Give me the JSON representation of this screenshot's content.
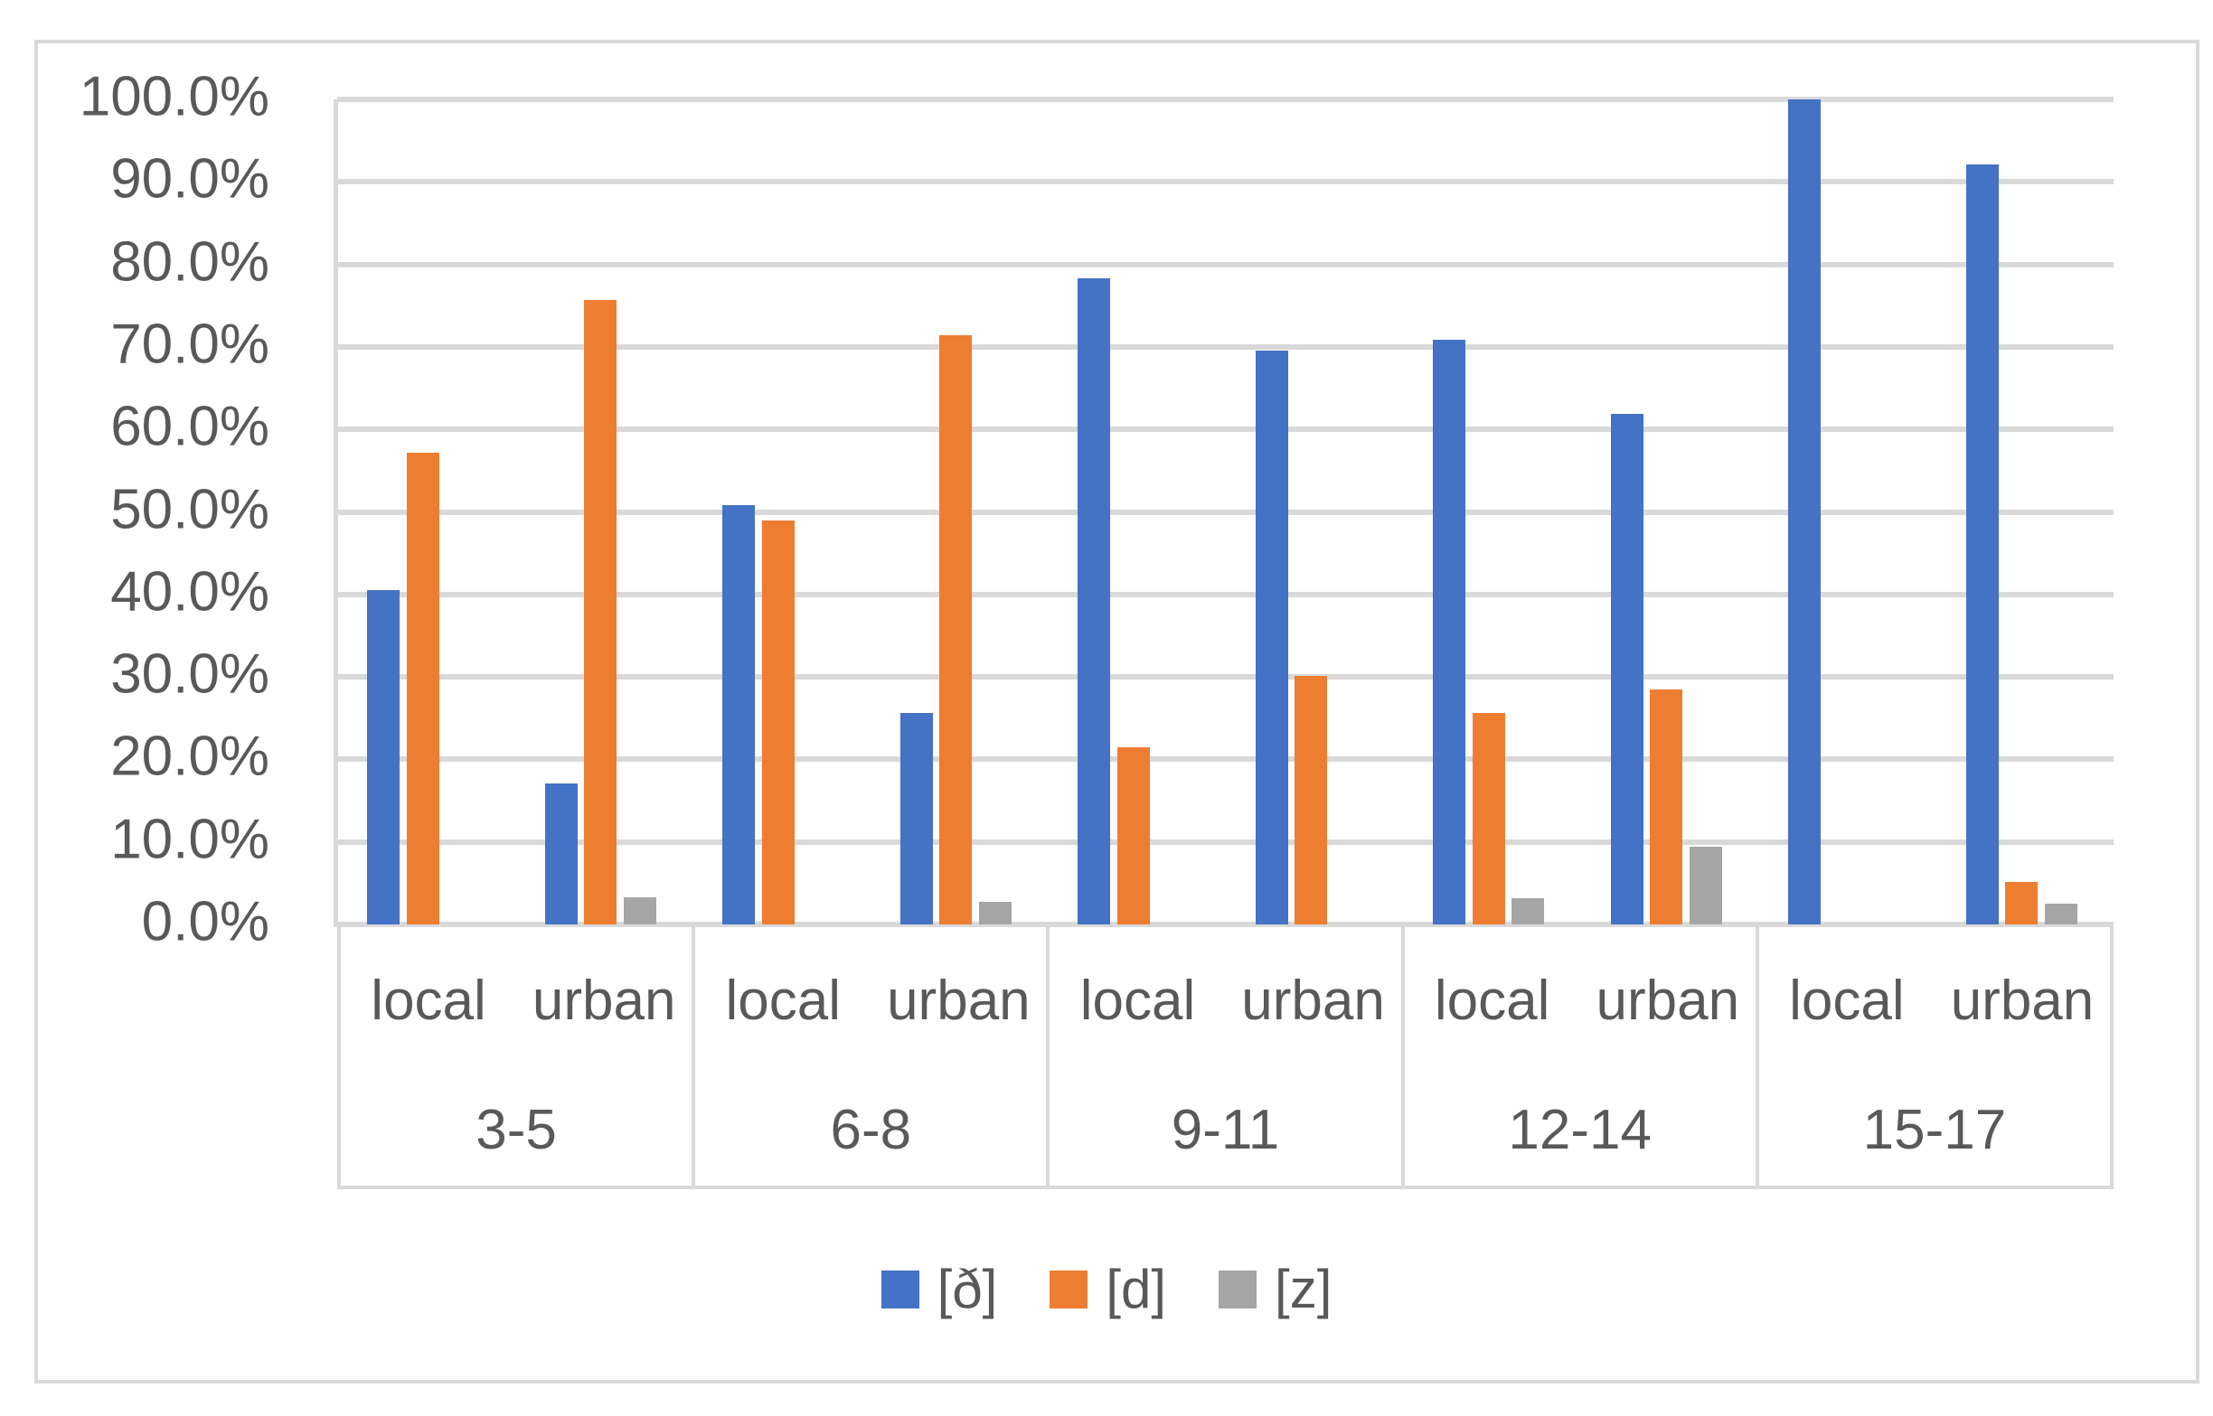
{
  "chart_data": {
    "type": "bar",
    "title": "",
    "xlabel": "",
    "ylabel": "",
    "ylim": [
      0,
      100
    ],
    "y_tick_step": 10,
    "y_tick_labels_top_to_bottom": [
      "100.0%",
      "90.0%",
      "80.0%",
      "70.0%",
      "60.0%",
      "50.0%",
      "40.0%",
      "30.0%",
      "20.0%",
      "10.0%",
      "0.0%"
    ],
    "grid": "horizontal",
    "legend_position": "bottom",
    "group_categories": [
      "3-5",
      "6-8",
      "9-11",
      "12-14",
      "15-17"
    ],
    "sub_categories": [
      "local",
      "urban"
    ],
    "column_order": [
      "3-5 local",
      "3-5 urban",
      "6-8 local",
      "6-8 urban",
      "9-11 local",
      "9-11 urban",
      "12-14 local",
      "12-14 urban",
      "15-17 local",
      "15-17 urban"
    ],
    "series": [
      {
        "name": "[ð]",
        "color": "#4472C4",
        "values": [
          40.5,
          17.1,
          50.8,
          25.6,
          78.3,
          69.6,
          70.9,
          61.9,
          100.0,
          92.1
        ]
      },
      {
        "name": "[d]",
        "color": "#ED7D31",
        "values": [
          57.2,
          75.7,
          49.0,
          71.4,
          21.5,
          30.1,
          25.6,
          28.5,
          0.0,
          5.1
        ]
      },
      {
        "name": "[z]",
        "color": "#A5A5A5",
        "values": [
          0.0,
          3.3,
          0.0,
          2.7,
          0.0,
          0.0,
          3.2,
          9.4,
          0.0,
          2.5
        ]
      }
    ],
    "colors": {
      "gridline": "#d9d9d9",
      "axis_text": "#595959",
      "frame_border": "#d9d9d9",
      "background": "#ffffff"
    }
  }
}
